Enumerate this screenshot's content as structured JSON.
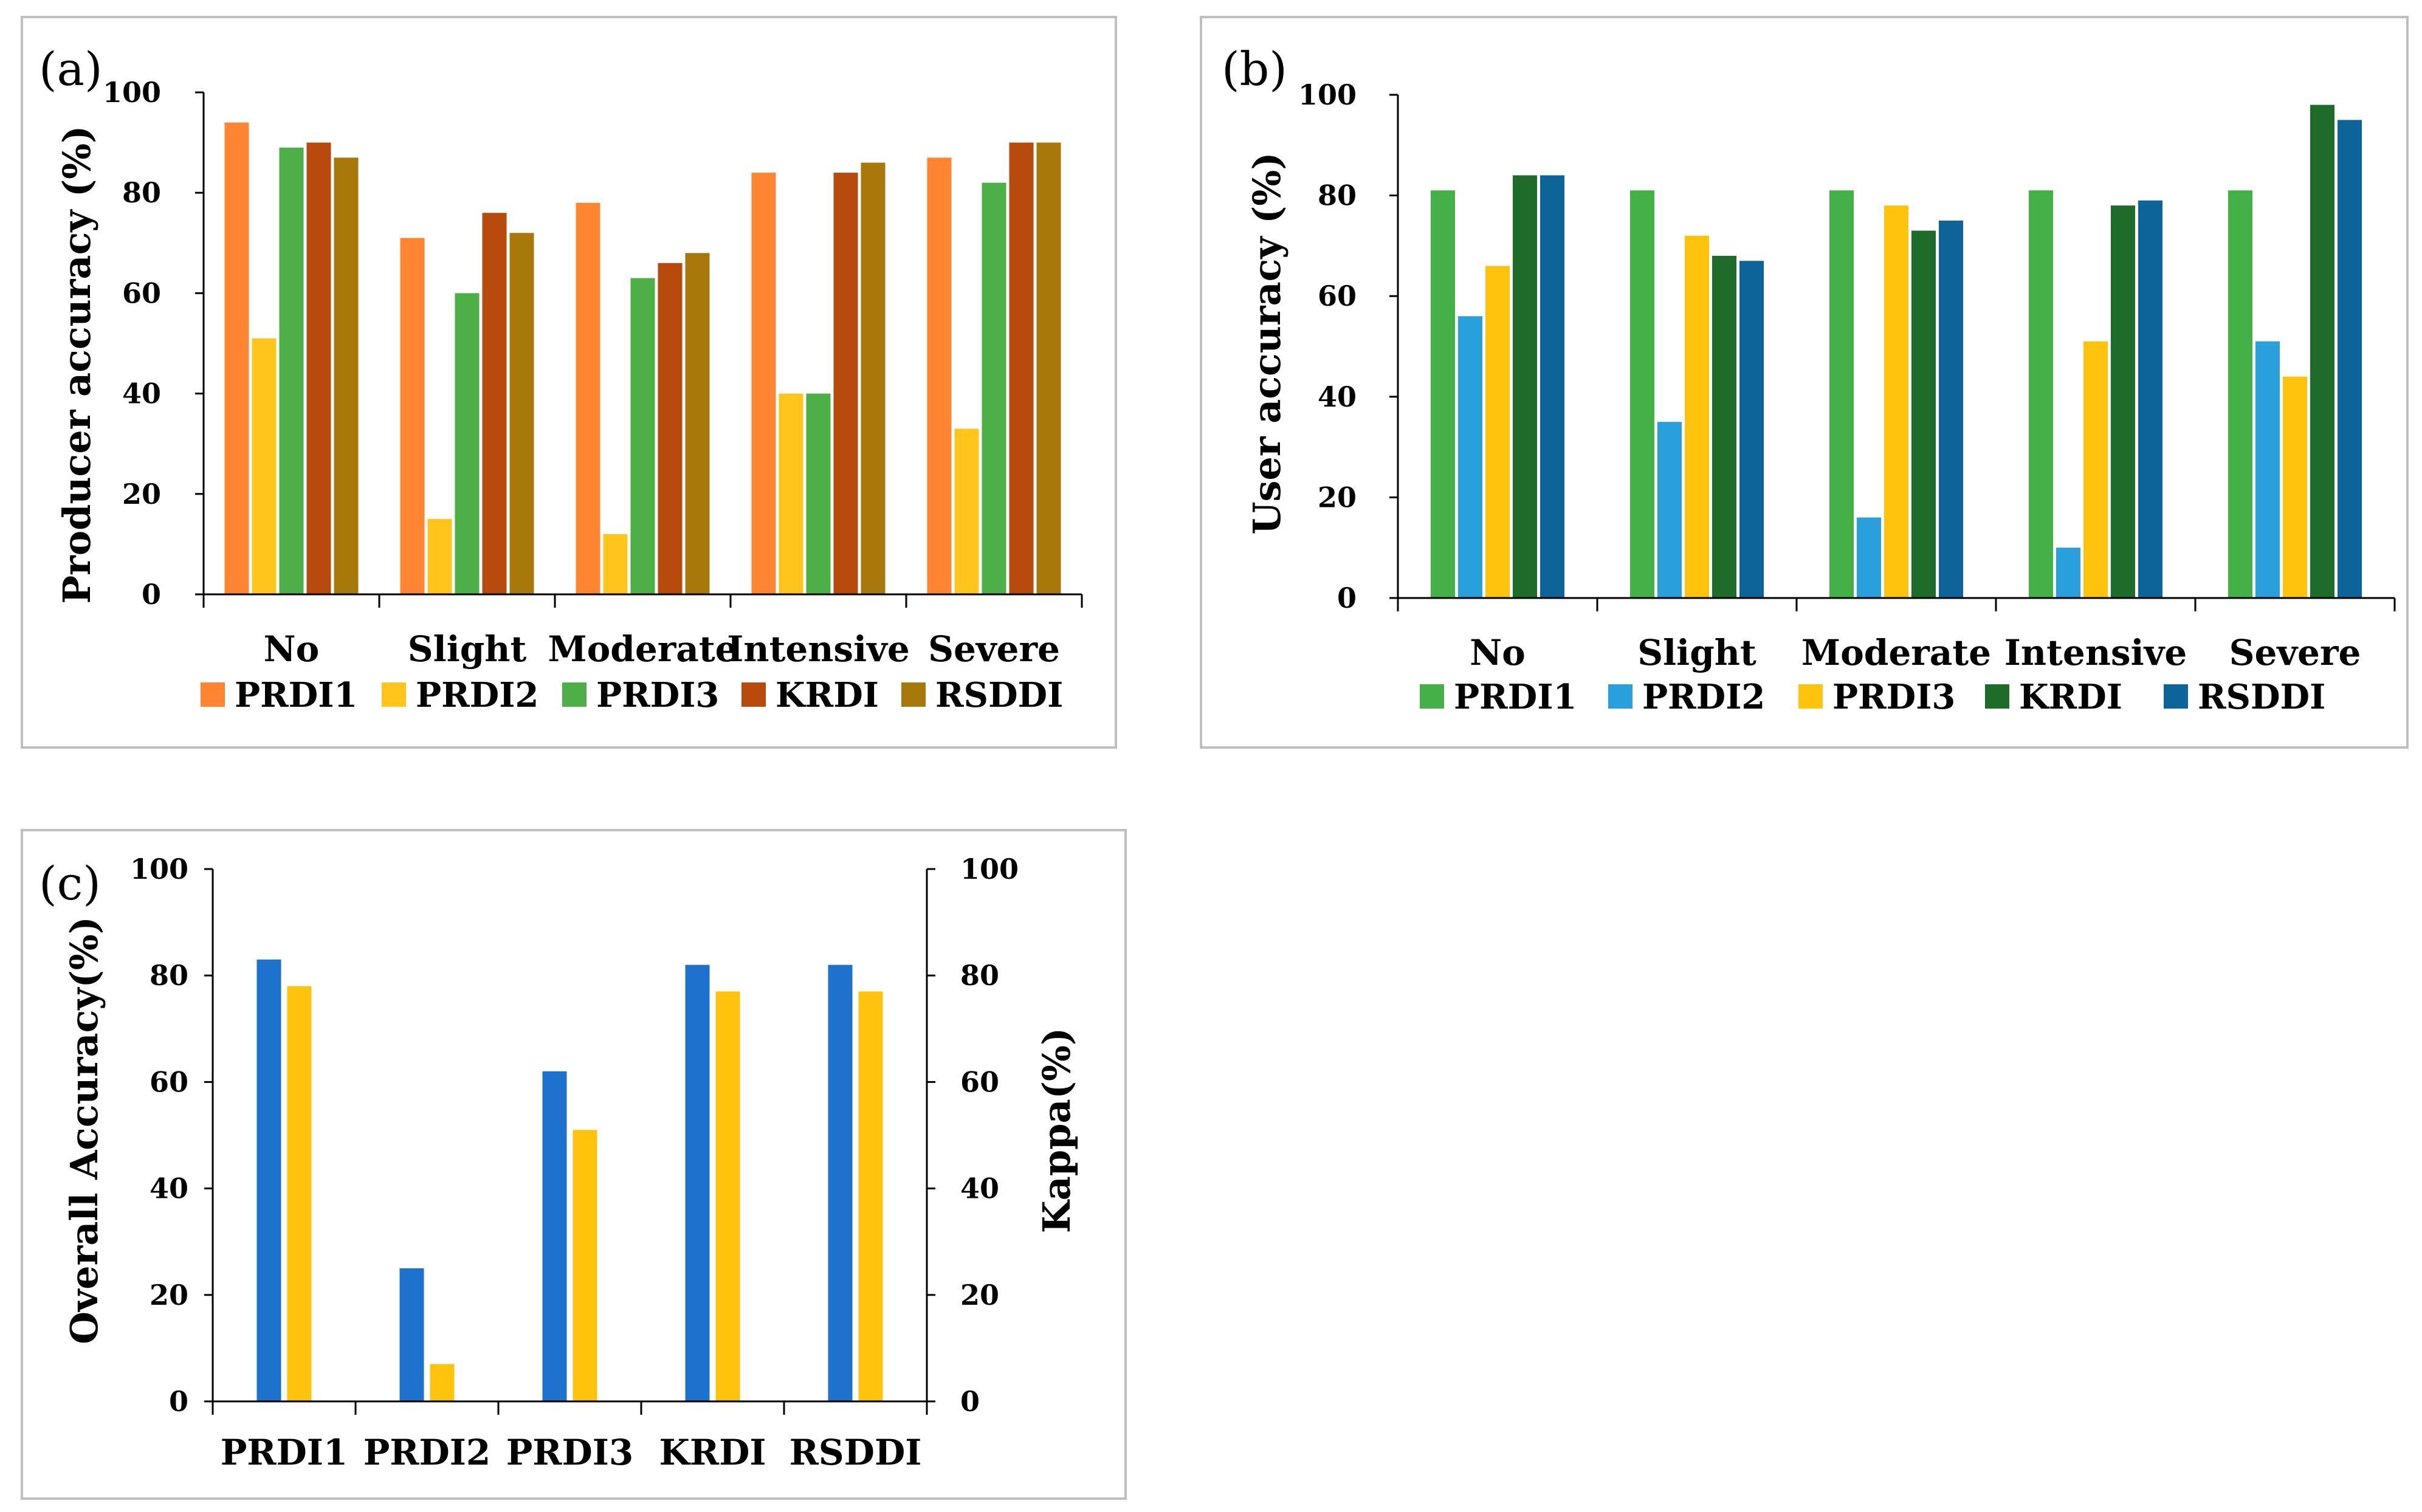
{
  "chart_data": [
    {
      "panel_label": "(a)",
      "type": "bar",
      "ylabel": "Producer accuracy (%)",
      "ylim": [
        0,
        100
      ],
      "yticks": [
        "0",
        "20",
        "40",
        "60",
        "80",
        "100"
      ],
      "categories": [
        "No",
        "Slight",
        "Moderate",
        "Intensive",
        "Severe"
      ],
      "series": [
        {
          "name": "PRDI1",
          "color": "#FF8533",
          "values": [
            94,
            71,
            78,
            84,
            87
          ]
        },
        {
          "name": "PRDI2",
          "color": "#FFC51A",
          "values": [
            51,
            15,
            12,
            40,
            33
          ]
        },
        {
          "name": "PRDI3",
          "color": "#4CAF47",
          "values": [
            89,
            60,
            63,
            40,
            82
          ]
        },
        {
          "name": "KRDI",
          "color": "#B84A0E",
          "values": [
            90,
            76,
            66,
            84,
            90
          ]
        },
        {
          "name": "RSDDI",
          "color": "#A8780A",
          "values": [
            87,
            72,
            68,
            86,
            90
          ]
        }
      ],
      "legend": "bottom"
    },
    {
      "panel_label": "(b)",
      "type": "bar",
      "ylabel": "User accuracy (%)",
      "ylim": [
        0,
        100
      ],
      "yticks": [
        "0",
        "20",
        "40",
        "60",
        "80",
        "100"
      ],
      "categories": [
        "No",
        "Slight",
        "Moderate",
        "Intensive",
        "Severe"
      ],
      "series": [
        {
          "name": "PRDI1",
          "color": "#46B048",
          "values": [
            81,
            81,
            81,
            81,
            81
          ]
        },
        {
          "name": "PRDI2",
          "color": "#29A0DB",
          "values": [
            56,
            35,
            16,
            10,
            51
          ]
        },
        {
          "name": "PRDI3",
          "color": "#FFC30D",
          "values": [
            66,
            72,
            78,
            51,
            44
          ]
        },
        {
          "name": "KRDI",
          "color": "#1F6B2A",
          "values": [
            84,
            68,
            73,
            78,
            98
          ]
        },
        {
          "name": "RSDDI",
          "color": "#0C6499",
          "values": [
            84,
            67,
            75,
            79,
            95
          ]
        }
      ],
      "legend": "bottom"
    },
    {
      "panel_label": "(c)",
      "type": "bar",
      "ylabel": "Overall Accuracy(%)",
      "ylabel_right": "Kappa(%)",
      "ylim": [
        0,
        100
      ],
      "yticks": [
        "0",
        "20",
        "40",
        "60",
        "80",
        "100"
      ],
      "categories": [
        "PRDI1",
        "PRDI2",
        "PRDI3",
        "KRDI",
        "RSDDI"
      ],
      "series": [
        {
          "name": "Overall Accuracy",
          "color": "#1C72CC",
          "values": [
            83,
            25,
            62,
            82,
            82
          ]
        },
        {
          "name": "Kappa",
          "color": "#FFC30D",
          "values": [
            78,
            7,
            51,
            77,
            77
          ]
        }
      ]
    }
  ]
}
